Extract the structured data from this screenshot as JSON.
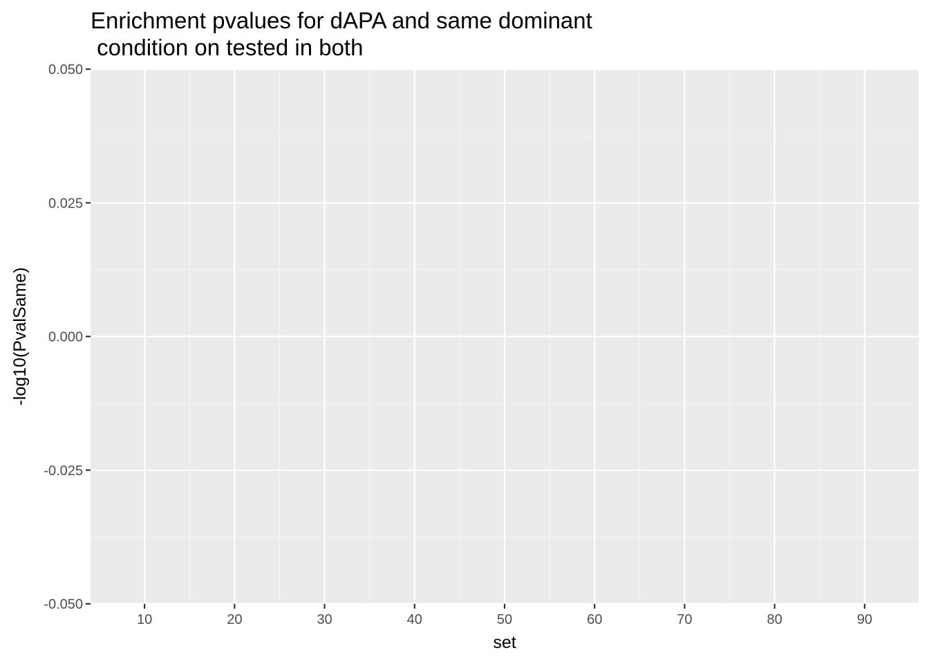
{
  "chart_data": {
    "type": "scatter",
    "title_lines": [
      "Enrichment pvalues for dAPA and same dominant",
      " condition on tested in both"
    ],
    "xlabel": "set",
    "ylabel": "-log10(PvalSame)",
    "xlim": [
      4,
      96
    ],
    "ylim": [
      -0.05,
      0.05
    ],
    "x_ticks": [
      10,
      20,
      30,
      40,
      50,
      60,
      70,
      80,
      90
    ],
    "x_tick_labels": [
      "10",
      "20",
      "30",
      "40",
      "50",
      "60",
      "70",
      "80",
      "90"
    ],
    "y_ticks": [
      -0.05,
      -0.025,
      0.0,
      0.025,
      0.05
    ],
    "y_tick_labels": [
      "-0.050",
      "-0.025",
      "0.000",
      "0.025",
      "0.050"
    ],
    "series": [],
    "grid": true,
    "colors": {
      "panel_background": "#ebebeb",
      "grid_major": "#ffffff",
      "grid_minor": "#f5f5f5",
      "tick": "#333333"
    }
  }
}
